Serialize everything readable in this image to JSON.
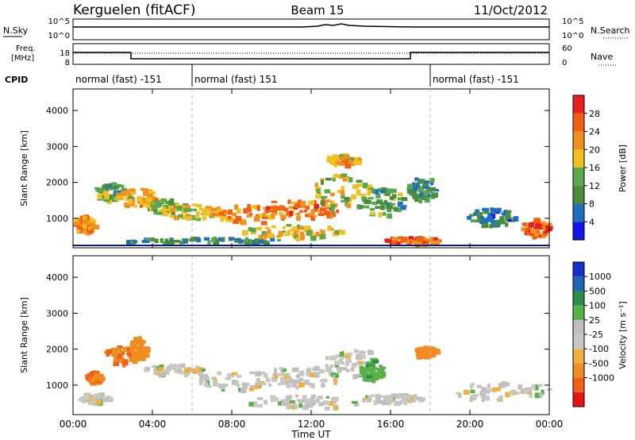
{
  "header": {
    "station": "Kerguelen (fitACF)",
    "beam": "Beam 15",
    "date": "11/Oct/2012"
  },
  "panels": {
    "nsky": {
      "label": "N.Sky",
      "tick_top": "10^5",
      "tick_bottom": "10^0"
    },
    "nsearch": {
      "label": "N.Search",
      "tick_top": "10^5",
      "tick_bottom": "10^0"
    },
    "freq": {
      "label_line1": "Freq.",
      "label_line2": "[MHz]",
      "tick_top": "18",
      "tick_bottom": "8"
    },
    "nave": {
      "label": "Nave",
      "tick_top": "60",
      "tick_bottom": "0"
    },
    "cpid": {
      "label": "CPID",
      "segments": [
        {
          "text": "normal (fast) -151",
          "start_h": 0,
          "end_h": 6
        },
        {
          "text": "normal (fast) 151",
          "start_h": 6,
          "end_h": 18
        },
        {
          "text": "normal (fast) -151",
          "start_h": 18,
          "end_h": 24
        }
      ]
    }
  },
  "xaxis": {
    "label": "Time UT",
    "ticks": [
      "00:00",
      "04:00",
      "08:00",
      "12:00",
      "16:00",
      "20:00",
      "00:00"
    ]
  },
  "colors": {
    "power": [
      "#1414e6",
      "#1f6fbf",
      "#4a8c3c",
      "#5aa84c",
      "#f0c020",
      "#f09020",
      "#f06010",
      "#e62020"
    ],
    "velocity": [
      "#e61414",
      "#f06018",
      "#f08c20",
      "#f0b040",
      "#c8c8c0",
      "#c0c0c0",
      "#58b048",
      "#2e8c46",
      "#2464b4",
      "#1432c8"
    ]
  },
  "chart_data": [
    {
      "type": "heatmap",
      "name": "Power",
      "ylabel": "Slant Range [km]",
      "xlabel": "",
      "ylim": [
        180,
        4600
      ],
      "xlim": [
        0,
        24
      ],
      "yticks": [
        "1000",
        "2000",
        "3000",
        "4000"
      ],
      "colorbar": {
        "label": "Power [dB]",
        "ticks": [
          "4",
          "8",
          "12",
          "16",
          "20",
          "24",
          "28"
        ]
      },
      "blobs": [
        {
          "t": 0.5,
          "r": 800,
          "dt": 0.6,
          "dr": 250,
          "v": 22
        },
        {
          "t": 1.8,
          "r": 1700,
          "dt": 0.8,
          "dr": 250,
          "v": 12
        },
        {
          "t": 3.3,
          "r": 1550,
          "dt": 1.2,
          "dr": 250,
          "v": 20
        },
        {
          "t": 4.6,
          "r": 1300,
          "dt": 1.0,
          "dr": 200,
          "v": 14
        },
        {
          "t": 6.0,
          "r": 1150,
          "dt": 1.5,
          "dr": 200,
          "v": 18
        },
        {
          "t": 9.0,
          "r": 1100,
          "dt": 2.0,
          "dr": 250,
          "v": 22
        },
        {
          "t": 11.5,
          "r": 1250,
          "dt": 2.0,
          "dr": 300,
          "v": 24
        },
        {
          "t": 13.5,
          "r": 1700,
          "dt": 1.5,
          "dr": 500,
          "v": 16
        },
        {
          "t": 15.5,
          "r": 1400,
          "dt": 1.2,
          "dr": 400,
          "v": 12
        },
        {
          "t": 11.0,
          "r": 600,
          "dt": 2.5,
          "dr": 200,
          "v": 18
        },
        {
          "t": 17.0,
          "r": 350,
          "dt": 1.5,
          "dr": 100,
          "v": 26
        },
        {
          "t": 13.5,
          "r": 2600,
          "dt": 0.8,
          "dr": 150,
          "v": 20
        },
        {
          "t": 17.5,
          "r": 1800,
          "dt": 0.7,
          "dr": 350,
          "v": 10
        },
        {
          "t": 23.2,
          "r": 700,
          "dt": 0.8,
          "dr": 250,
          "v": 26
        },
        {
          "t": 21.0,
          "r": 1000,
          "dt": 1.2,
          "dr": 250,
          "v": 8
        },
        {
          "t": 6.5,
          "r": 350,
          "dt": 4.0,
          "dr": 80,
          "v": 10
        }
      ]
    },
    {
      "type": "heatmap",
      "name": "Velocity",
      "ylabel": "Slant Range [km]",
      "xlabel": "Time UT",
      "ylim": [
        180,
        4600
      ],
      "xlim": [
        0,
        24
      ],
      "yticks": [
        "1000",
        "2000",
        "3000",
        "4000"
      ],
      "colorbar": {
        "label": "Velocity [m s⁻¹]",
        "ticks": [
          "1000",
          "500",
          "100",
          "25",
          "-25",
          "-100",
          "-500",
          "-1000"
        ]
      },
      "blobs": [
        {
          "t": 1.0,
          "r": 1200,
          "dt": 0.4,
          "dr": 150,
          "v": -500
        },
        {
          "t": 2.3,
          "r": 1800,
          "dt": 0.8,
          "dr": 250,
          "v": -500
        },
        {
          "t": 3.2,
          "r": 2000,
          "dt": 0.5,
          "dr": 300,
          "v": -300
        },
        {
          "t": 5.0,
          "r": 1400,
          "dt": 1.5,
          "dr": 150,
          "v": 0
        },
        {
          "t": 8.5,
          "r": 1100,
          "dt": 2.5,
          "dr": 250,
          "v": 0
        },
        {
          "t": 11.5,
          "r": 1200,
          "dt": 2.0,
          "dr": 300,
          "v": 0
        },
        {
          "t": 14.0,
          "r": 1600,
          "dt": 1.5,
          "dr": 400,
          "v": 0
        },
        {
          "t": 15.0,
          "r": 1400,
          "dt": 0.6,
          "dr": 300,
          "v": 80
        },
        {
          "t": 17.7,
          "r": 1900,
          "dt": 0.6,
          "dr": 150,
          "v": -300
        },
        {
          "t": 21.5,
          "r": 800,
          "dt": 2.5,
          "dr": 250,
          "v": 0
        },
        {
          "t": 11.5,
          "r": 500,
          "dt": 3.0,
          "dr": 180,
          "v": 0
        },
        {
          "t": 16.0,
          "r": 600,
          "dt": 1.5,
          "dr": 120,
          "v": 0
        },
        {
          "t": 1.0,
          "r": 600,
          "dt": 0.8,
          "dr": 150,
          "v": 0
        }
      ]
    }
  ]
}
